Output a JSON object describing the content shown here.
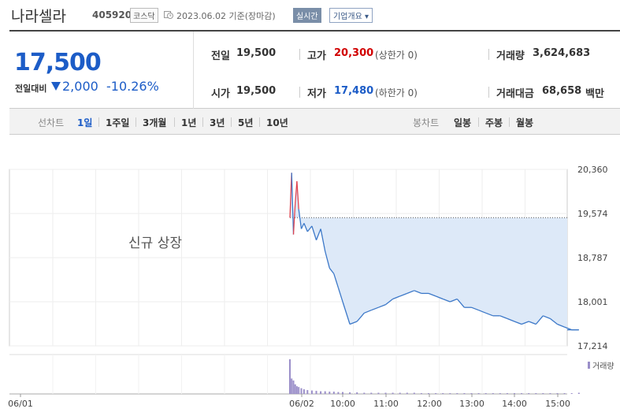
{
  "header": {
    "name": "나라셀라",
    "code": "405920",
    "market": "코스닥",
    "date": "2023.06.02 기준(장마감)",
    "realtime_label": "실시간",
    "company_label": "기업개요"
  },
  "quote": {
    "price": "17,500",
    "change_label": "전일대비",
    "change": "2,000",
    "change_pct": "-10.26%",
    "prev_label": "전일",
    "prev": "19,500",
    "high_label": "고가",
    "high": "20,300",
    "high_note": "(상한가 0)",
    "volume_label": "거래량",
    "volume": "3,624,683",
    "open_label": "시가",
    "open": "19,500",
    "low_label": "저가",
    "low": "17,480",
    "low_note": "(하한가 0)",
    "amount_label": "거래대금",
    "amount": "68,658",
    "amount_unit": "백만"
  },
  "toolbar": {
    "line_label": "선차트",
    "periods": [
      "1일",
      "1주일",
      "3개월",
      "1년",
      "3년",
      "5년",
      "10년"
    ],
    "candle_label": "봉차트",
    "candles": [
      "일봉",
      "주봉",
      "월봉"
    ]
  },
  "chart_data": {
    "type": "line",
    "annotation": "신규 상장",
    "y_ticks": [
      "20,360",
      "19,574",
      "18,787",
      "18,001",
      "17,214"
    ],
    "ylim": [
      17214,
      20360
    ],
    "reference_line": 19500,
    "x_ticks": [
      "06/01",
      "06/02",
      "10:00",
      "11:00",
      "12:00",
      "13:00",
      "14:00",
      "15:00"
    ],
    "volume_legend": "거래량",
    "series": [
      {
        "x": [
          "09:00",
          "09:02",
          "09:04",
          "09:06",
          "09:08",
          "09:10",
          "09:13",
          "09:16",
          "09:20",
          "09:25",
          "09:30",
          "09:35",
          "09:40",
          "09:45",
          "09:50",
          "09:55",
          "10:00",
          "10:10",
          "10:20",
          "10:30",
          "10:40",
          "10:50",
          "11:00",
          "11:10",
          "11:20",
          "11:30",
          "11:40",
          "11:50",
          "12:00",
          "12:10",
          "12:20",
          "12:30",
          "12:40",
          "12:50",
          "13:00",
          "13:10",
          "13:20",
          "13:30",
          "13:40",
          "13:50",
          "14:00",
          "14:10",
          "14:20",
          "14:30",
          "14:40",
          "14:50",
          "15:00",
          "15:10",
          "15:20",
          "15:30"
        ],
        "values": [
          19500,
          20300,
          19200,
          19750,
          20150,
          19650,
          19300,
          19400,
          19250,
          19350,
          19100,
          19300,
          18900,
          18600,
          18500,
          18250,
          18000,
          17600,
          17650,
          17800,
          17850,
          17900,
          17950,
          18050,
          18100,
          18150,
          18200,
          18150,
          18150,
          18100,
          18050,
          18000,
          18050,
          17900,
          17900,
          17850,
          17800,
          17750,
          17750,
          17700,
          17650,
          17600,
          17650,
          17600,
          17750,
          17700,
          17600,
          17550,
          17500,
          17500
        ]
      }
    ],
    "volume": [
      90,
      40,
      35,
      25,
      20,
      18,
      15,
      12,
      10,
      9,
      8,
      7,
      7,
      6,
      6,
      5,
      5,
      4,
      4,
      3,
      3,
      3,
      3,
      3,
      3,
      3,
      3,
      2,
      2,
      2,
      2,
      2,
      2,
      2,
      2,
      2,
      2,
      2,
      2,
      2,
      2,
      2,
      2,
      2,
      2,
      2,
      2,
      2,
      2,
      3
    ]
  }
}
